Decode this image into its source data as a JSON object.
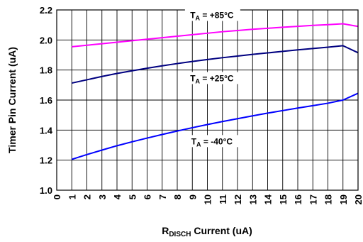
{
  "chart_data": {
    "type": "line",
    "xlabel_main": "R",
    "xlabel_sub": "DISCH",
    "xlabel_rest": " Current (uA)",
    "ylabel": "Timer Pin Current (uA)",
    "xlim": [
      0,
      20
    ],
    "ylim": [
      1.0,
      2.2
    ],
    "x_ticks": [
      "0",
      "1",
      "2",
      "3",
      "4",
      "5",
      "6",
      "7",
      "8",
      "9",
      "10",
      "11",
      "12",
      "13",
      "14",
      "15",
      "16",
      "17",
      "18",
      "19",
      "20"
    ],
    "y_ticks": [
      "1.0",
      "1.2",
      "1.4",
      "1.6",
      "1.8",
      "2.0",
      "2.2"
    ],
    "grid": true,
    "series": [
      {
        "name": "T_A = +85°C",
        "color": "#ff00ff",
        "x": [
          1,
          2,
          3,
          4,
          5,
          6,
          7,
          8,
          9,
          10,
          11,
          12,
          13,
          14,
          15,
          16,
          17,
          18,
          19,
          20
        ],
        "y": [
          1.955,
          1.965,
          1.975,
          1.985,
          1.995,
          2.005,
          2.015,
          2.025,
          2.035,
          2.045,
          2.055,
          2.063,
          2.071,
          2.078,
          2.085,
          2.091,
          2.097,
          2.102,
          2.108,
          2.09
        ]
      },
      {
        "name": "T_A = +25°C",
        "color": "#000080",
        "x": [
          1,
          2,
          3,
          4,
          5,
          6,
          7,
          8,
          9,
          10,
          11,
          12,
          13,
          14,
          15,
          16,
          17,
          18,
          19,
          20
        ],
        "y": [
          1.713,
          1.735,
          1.757,
          1.777,
          1.795,
          1.812,
          1.828,
          1.843,
          1.857,
          1.87,
          1.882,
          1.893,
          1.904,
          1.914,
          1.924,
          1.934,
          1.943,
          1.952,
          1.962,
          1.915
        ]
      },
      {
        "name": "T_A = -40°C",
        "color": "#0000ff",
        "x": [
          1,
          2,
          3,
          4,
          5,
          6,
          7,
          8,
          9,
          10,
          11,
          12,
          13,
          14,
          15,
          16,
          17,
          18,
          19,
          20
        ],
        "y": [
          1.205,
          1.237,
          1.267,
          1.296,
          1.322,
          1.347,
          1.371,
          1.394,
          1.416,
          1.437,
          1.457,
          1.476,
          1.495,
          1.513,
          1.53,
          1.547,
          1.563,
          1.579,
          1.6,
          1.645
        ]
      }
    ],
    "annotations": [
      {
        "main": "T",
        "sub": "A",
        "rest": " = +85°C",
        "x": 10.3,
        "y": 2.155
      },
      {
        "main": "T",
        "sub": "A",
        "rest": " = +25°C",
        "x": 10.3,
        "y": 1.735
      },
      {
        "main": "T",
        "sub": "A",
        "rest": " = -40°C",
        "x": 10.3,
        "y": 1.315
      }
    ]
  }
}
